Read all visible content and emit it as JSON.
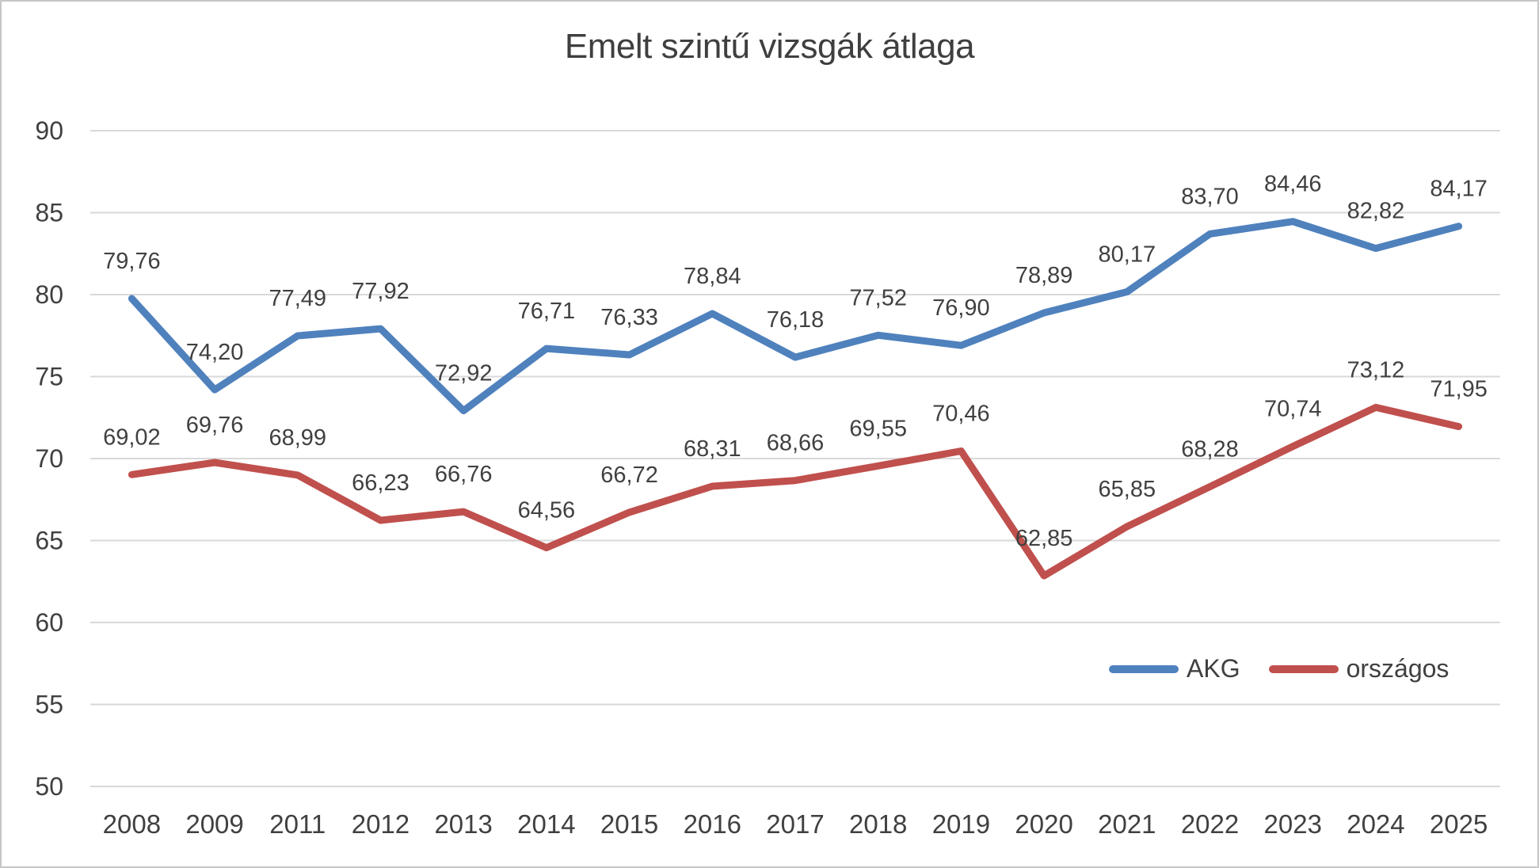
{
  "title": "Emelt szintű vizsgák átlaga",
  "chart_data": {
    "type": "line",
    "categories": [
      "2008",
      "2009",
      "2011",
      "2012",
      "2013",
      "2014",
      "2015",
      "2016",
      "2017",
      "2018",
      "2019",
      "2020",
      "2021",
      "2022",
      "2023",
      "2024",
      "2025"
    ],
    "series": [
      {
        "name": "AKG",
        "color": "#4F81BD",
        "values": [
          79.76,
          74.2,
          77.49,
          77.92,
          72.92,
          76.71,
          76.33,
          78.84,
          76.18,
          77.52,
          76.9,
          78.89,
          80.17,
          83.7,
          84.46,
          82.82,
          84.17
        ],
        "labels": [
          "79,76",
          "74,20",
          "77,49",
          "77,92",
          "72,92",
          "76,71",
          "76,33",
          "78,84",
          "76,18",
          "77,52",
          "76,90",
          "78,89",
          "80,17",
          "83,70",
          "84,46",
          "82,82",
          "84,17"
        ]
      },
      {
        "name": "országos",
        "color": "#C0504D",
        "values": [
          69.02,
          69.76,
          68.99,
          66.23,
          66.76,
          64.56,
          66.72,
          68.31,
          68.66,
          69.55,
          70.46,
          62.85,
          65.85,
          68.28,
          70.74,
          73.12,
          71.95
        ],
        "labels": [
          "69,02",
          "69,76",
          "68,99",
          "66,23",
          "66,76",
          "64,56",
          "66,72",
          "68,31",
          "68,66",
          "69,55",
          "70,46",
          "62,85",
          "65,85",
          "68,28",
          "70,74",
          "73,12",
          "71,95"
        ]
      }
    ],
    "title": "Emelt szintű vizsgák átlaga",
    "xlabel": "",
    "ylabel": "",
    "ylim": [
      50,
      90
    ],
    "yticks": [
      90,
      85,
      80,
      75,
      70,
      65,
      60,
      55,
      50
    ],
    "grid": "horizontal",
    "gridline_color": "#d9d9d9",
    "text_color": "#404040",
    "legend_position": "inside-bottom-right"
  }
}
